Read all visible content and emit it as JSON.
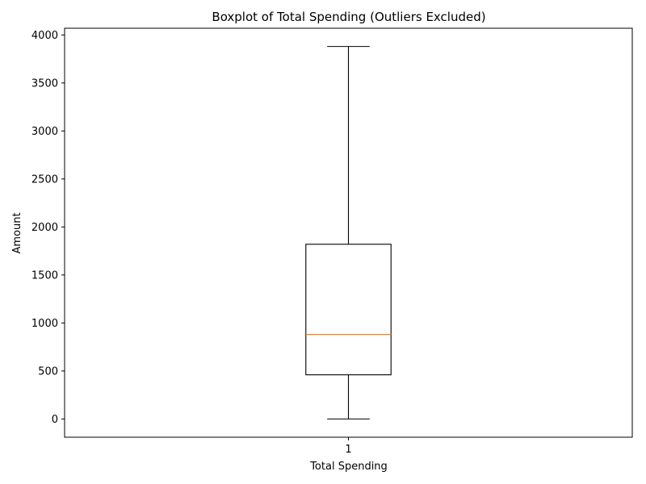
{
  "chart_data": {
    "type": "box",
    "title": "Boxplot of Total Spending (Outliers Excluded)",
    "xlabel": "Total Spending",
    "ylabel": "Amount",
    "categories": [
      "1"
    ],
    "ylim": [
      -190,
      4070
    ],
    "yticks": [
      0,
      500,
      1000,
      1500,
      2000,
      2500,
      3000,
      3500,
      4000
    ],
    "grid": false,
    "boxes": [
      {
        "category": "1",
        "whisker_low": 0,
        "q1": 460,
        "median": 880,
        "q3": 1820,
        "whisker_high": 3880
      }
    ],
    "colors": {
      "box": "#000000",
      "median": "#ff7f0e",
      "axes": "#000000"
    }
  }
}
